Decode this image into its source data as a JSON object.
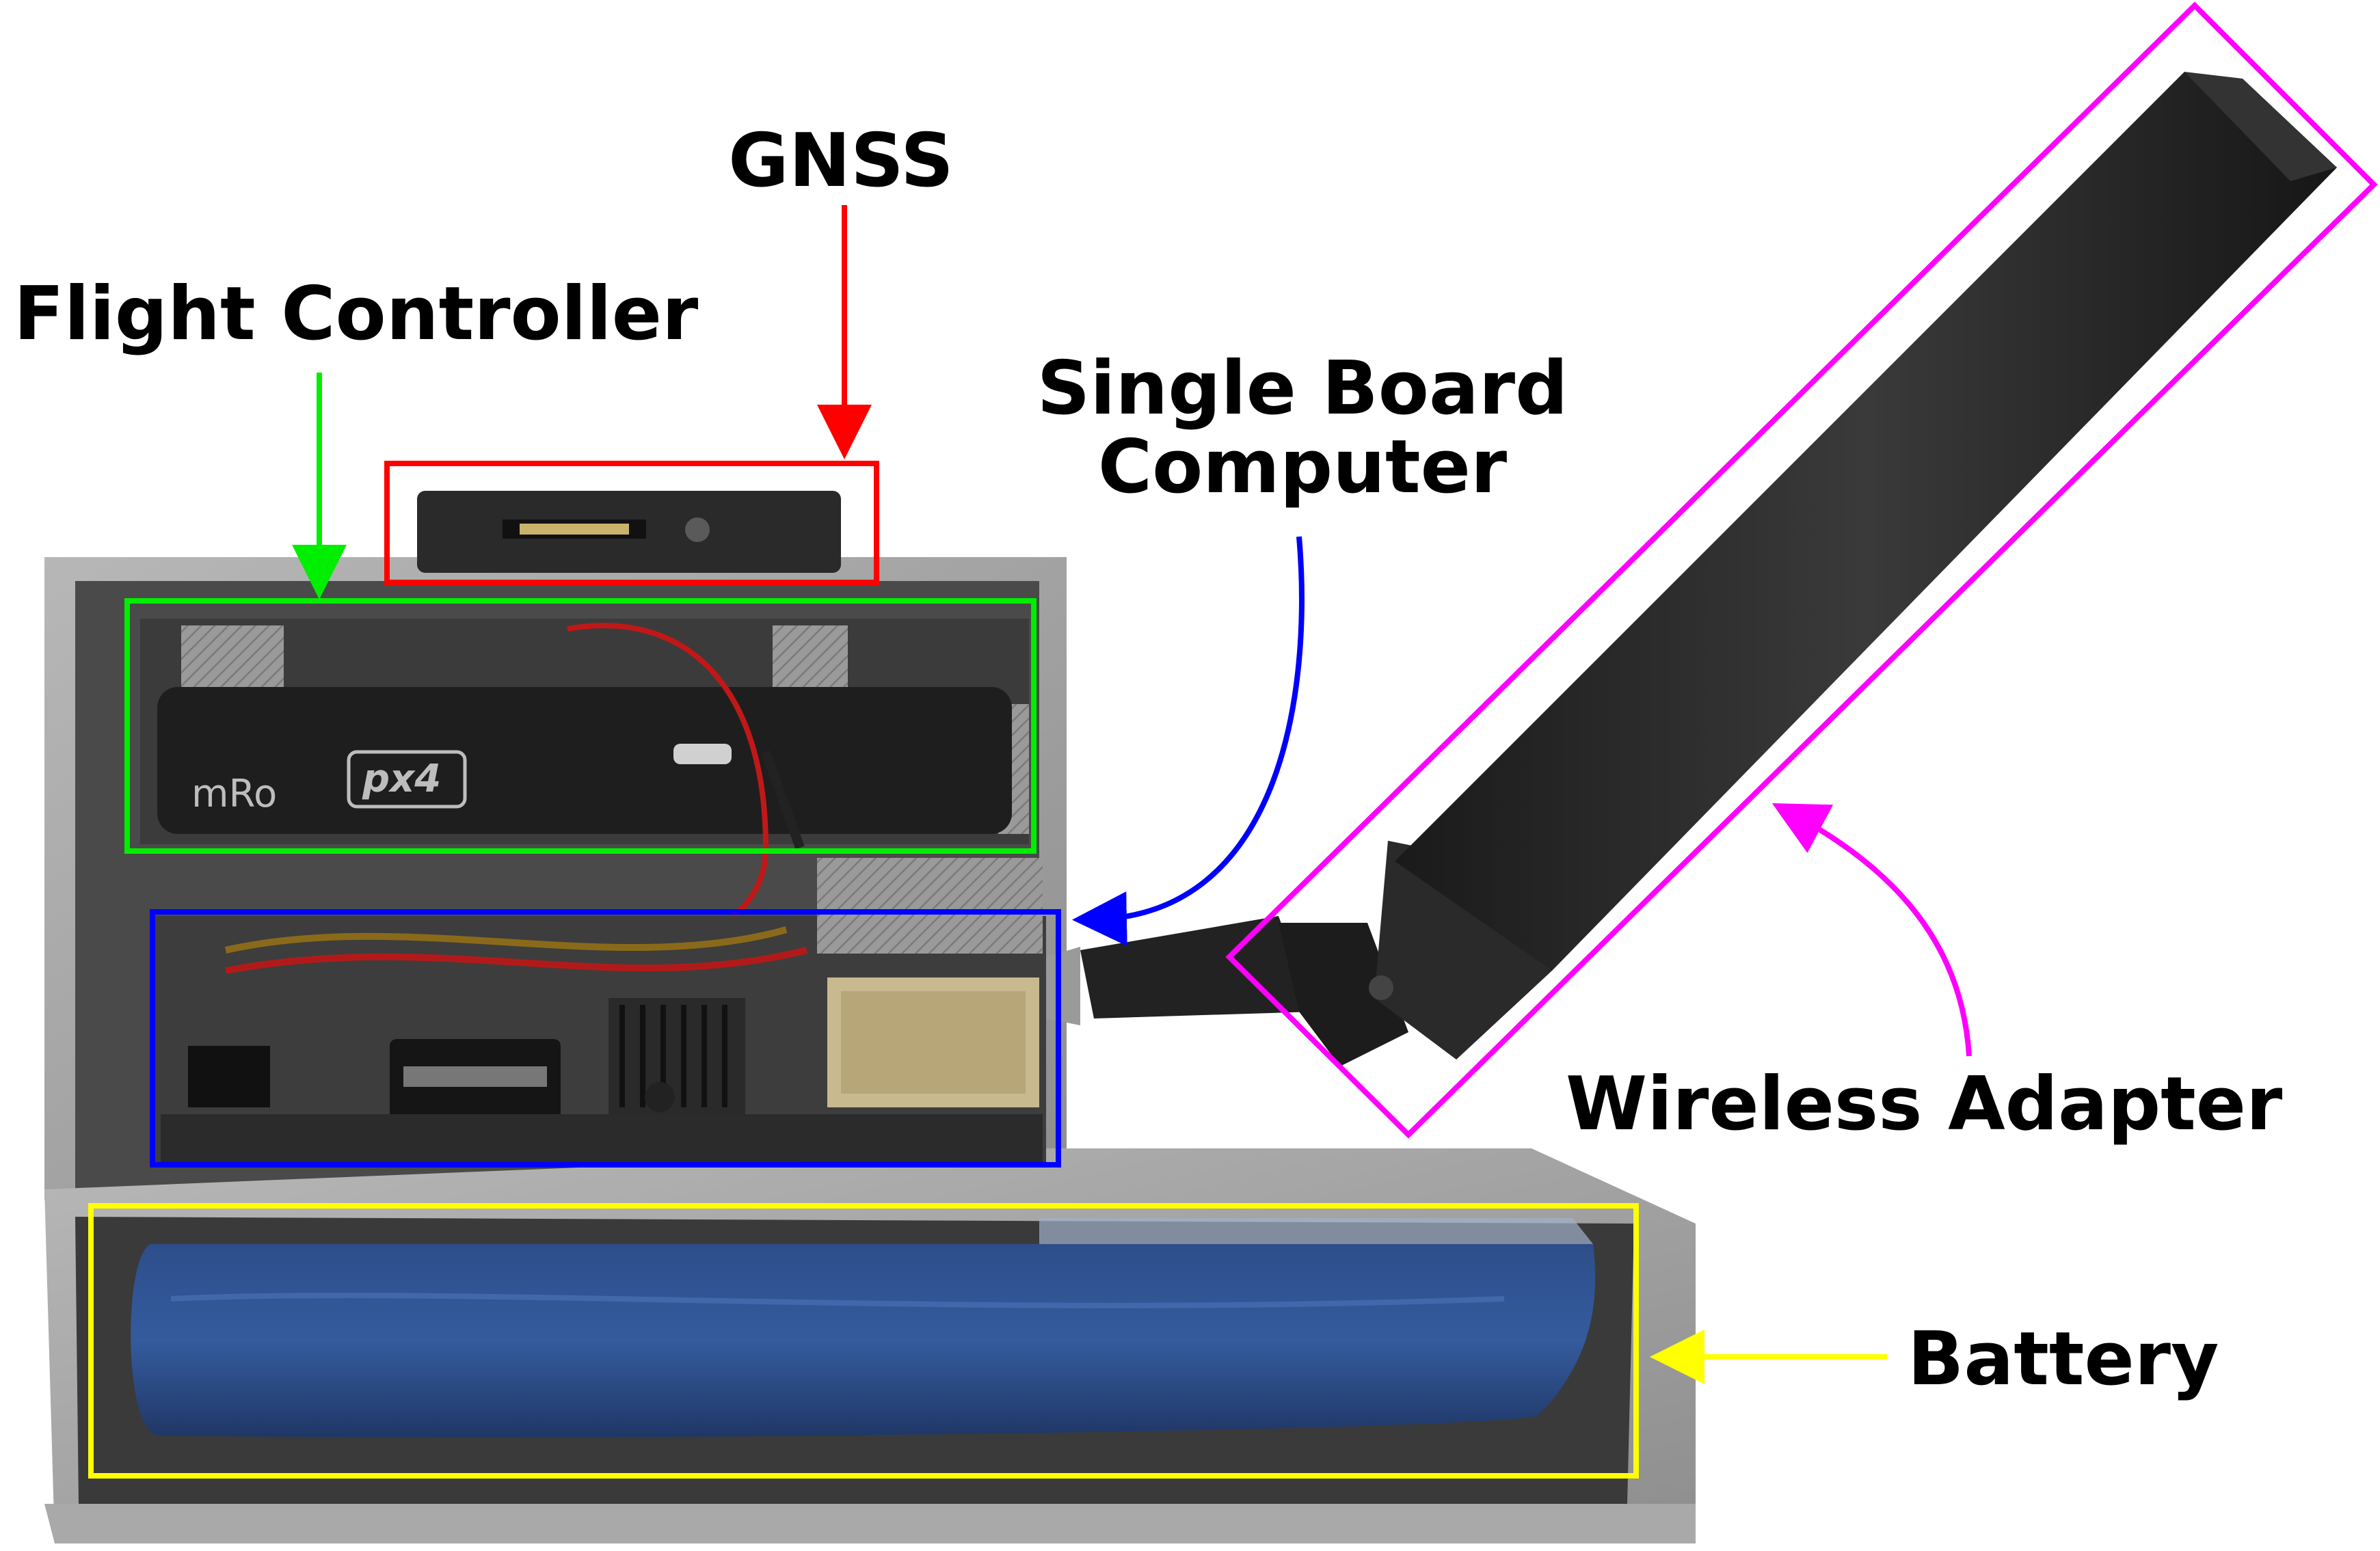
{
  "labels": {
    "gnss": "GNSS",
    "flight_controller": "Flight Controller",
    "sbc_line1": "Single Board",
    "sbc_line2": "Computer",
    "wireless_adapter": "Wireless Adapter",
    "battery": "Battery"
  },
  "board_markings": {
    "mro": "mRo",
    "px4": "px4"
  },
  "colors": {
    "gnss": "#ff0000",
    "flight_controller": "#00ee00",
    "single_board_computer": "#0000ff",
    "wireless_adapter": "#ff00ff",
    "battery": "#ffff00"
  }
}
